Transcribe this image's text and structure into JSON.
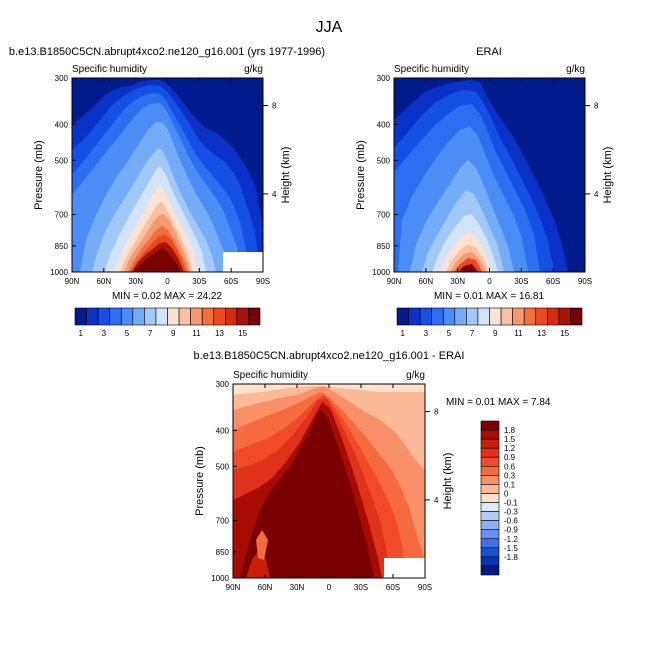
{
  "figure": {
    "title": "JJA"
  },
  "chart_data": [
    {
      "type": "heatmap",
      "title": "b.e13.B1850C5CN.abrupt4xco2.ne120_g16.001 (yrs 1977-1996)",
      "left_label": "Specific humidity",
      "right_label": "g/kg",
      "ylabel": "Pressure (mb)",
      "y2label": "Height (km)",
      "x_ticks": [
        "90N",
        "60N",
        "30N",
        "0",
        "30S",
        "60S",
        "90S"
      ],
      "y_ticks": [
        "300",
        "400",
        "500",
        "700",
        "850",
        "1000"
      ],
      "y2_ticks": [
        "8",
        "4"
      ],
      "xlim": [
        90,
        -90
      ],
      "ylim": [
        1000,
        300
      ],
      "y_scale": "log",
      "stats": "MIN =  0.02  MAX = 24.22",
      "colorbar": {
        "orientation": "horizontal",
        "labels": [
          "1",
          "3",
          "5",
          "7",
          "9",
          "11",
          "13",
          "15"
        ],
        "colors": [
          "#001c8c",
          "#0a32c8",
          "#1450e6",
          "#2d6ef0",
          "#4c8cf5",
          "#74acf7",
          "#a2c8fa",
          "#d2e4fc",
          "#fce2d2",
          "#f9c0a2",
          "#f69970",
          "#f2703f",
          "#ea4a1e",
          "#d22d0e",
          "#a61406",
          "#7a0000"
        ]
      }
    },
    {
      "type": "heatmap",
      "title": "ERAI",
      "left_label": "Specific humidity",
      "right_label": "g/kg",
      "ylabel": "Pressure (mb)",
      "y2label": "Height (km)",
      "x_ticks": [
        "90N",
        "60N",
        "30N",
        "0",
        "30S",
        "60S",
        "90S"
      ],
      "y_ticks": [
        "300",
        "400",
        "500",
        "700",
        "850",
        "1000"
      ],
      "y2_ticks": [
        "8",
        "4"
      ],
      "xlim": [
        90,
        -90
      ],
      "ylim": [
        1000,
        300
      ],
      "y_scale": "log",
      "stats": "MIN =  0.01  MAX = 16.81",
      "colorbar": {
        "orientation": "horizontal",
        "labels": [
          "1",
          "3",
          "5",
          "7",
          "9",
          "11",
          "13",
          "15"
        ],
        "colors": [
          "#001c8c",
          "#0a32c8",
          "#1450e6",
          "#2d6ef0",
          "#4c8cf5",
          "#74acf7",
          "#a2c8fa",
          "#d2e4fc",
          "#fce2d2",
          "#f9c0a2",
          "#f69970",
          "#f2703f",
          "#ea4a1e",
          "#d22d0e",
          "#a61406",
          "#7a0000"
        ]
      }
    },
    {
      "type": "heatmap",
      "title": "b.e13.B1850C5CN.abrupt4xco2.ne120_g16.001 - ERAI",
      "left_label": "Specific humidity",
      "right_label": "g/kg",
      "ylabel": "Pressure (mb)",
      "y2label": "Height (km)",
      "x_ticks": [
        "90N",
        "60N",
        "30N",
        "0",
        "30S",
        "60S",
        "90S"
      ],
      "y_ticks": [
        "300",
        "400",
        "500",
        "700",
        "850",
        "1000"
      ],
      "y2_ticks": [
        "8",
        "4"
      ],
      "xlim": [
        90,
        -90
      ],
      "ylim": [
        1000,
        300
      ],
      "y_scale": "log",
      "stats": "MIN =  0.01  MAX =  7.84",
      "colorbar": {
        "orientation": "vertical",
        "labels": [
          "1.8",
          "1.5",
          "1.2",
          "0.9",
          "0.6",
          "0.3",
          "0.1",
          "0",
          "-0.1",
          "-0.3",
          "-0.6",
          "-0.9",
          "-1.2",
          "-1.5",
          "-1.8"
        ],
        "colors": [
          "#7a0000",
          "#a80c00",
          "#c81e0a",
          "#e0321a",
          "#f04a28",
          "#f66a40",
          "#f99068",
          "#fcba98",
          "#fee2cc",
          "#dceaf9",
          "#b4cdf5",
          "#8cb0f0",
          "#6690ec",
          "#4070e6",
          "#1e4ed8",
          "#0a32b4",
          "#001a82"
        ]
      }
    }
  ]
}
